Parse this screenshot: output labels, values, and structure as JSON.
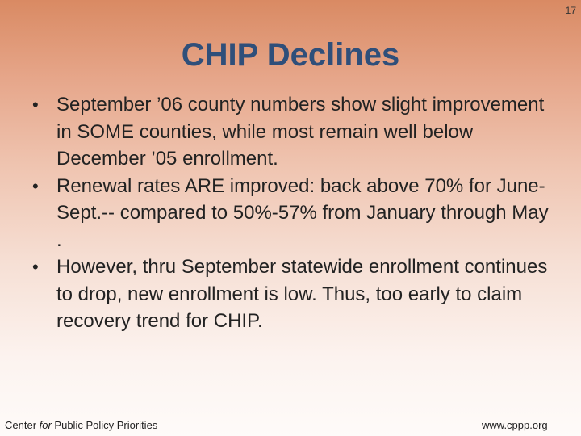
{
  "slide": {
    "number": "17",
    "title": "CHIP Declines",
    "bullets": [
      "September ’06 county numbers show slight improvement in SOME counties, while most remain well below December ’05 enrollment.",
      "Renewal rates ARE improved:  back above 70% for June-Sept.-- compared to 50%-57% from January through May .",
      "However, thru September statewide enrollment continues to drop, new enrollment is low. Thus, too early to claim recovery trend for CHIP."
    ],
    "bullet_symbol": "•"
  },
  "footer": {
    "org_prefix": "Center ",
    "org_italic": "for",
    "org_suffix": " Public Policy Priorities",
    "url": "www.cppp.org"
  },
  "colors": {
    "title": "#2f4f7a",
    "gradient_top": "#d98a63",
    "gradient_bottom": "#fefbf9"
  }
}
